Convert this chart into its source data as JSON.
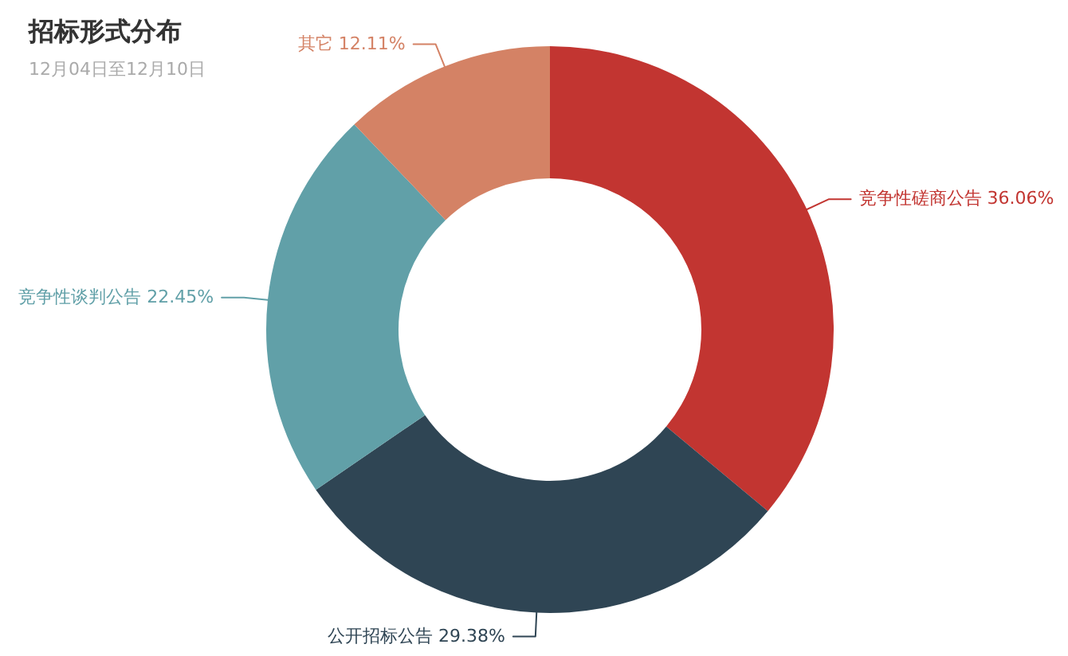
{
  "chart_data": {
    "type": "donut",
    "title": "招标形式分布",
    "subtitle": "12月04日至12月10日",
    "categories": [
      "竞争性磋商公告",
      "公开招标公告",
      "竞争性谈判公告",
      "其它"
    ],
    "values": [
      36.06,
      29.38,
      22.45,
      12.11
    ],
    "colors": [
      "#c23531",
      "#2f4554",
      "#61a0a8",
      "#d48265"
    ],
    "value_labels": [
      "36.06%",
      "29.38%",
      "22.45%",
      "12.11%"
    ]
  }
}
